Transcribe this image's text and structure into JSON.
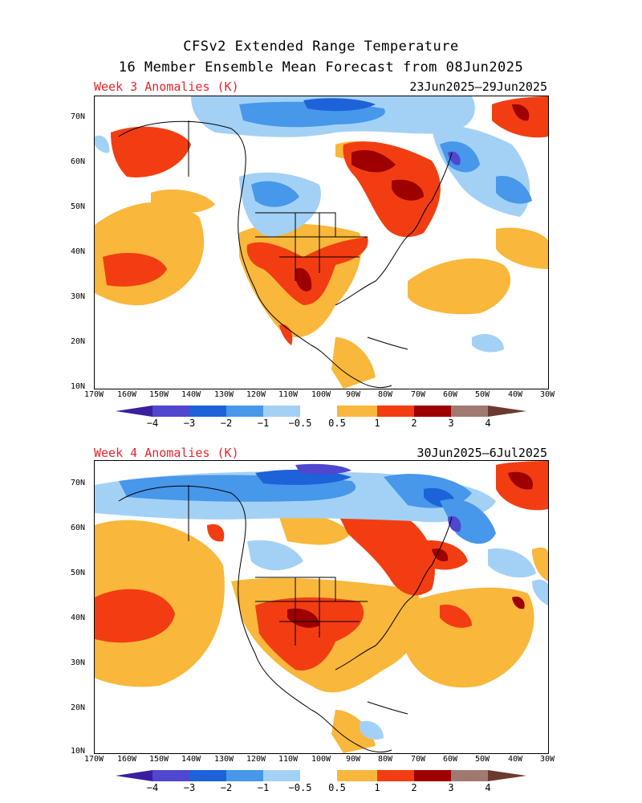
{
  "title_line1": "CFSv2 Extended Range Temperature",
  "title_line2": "16 Member Ensemble Mean Forecast from 08Jun2025",
  "panels": [
    {
      "label": "Week 3 Anomalies (K)",
      "date_range": "23Jun2025–29Jun2025"
    },
    {
      "label": "Week 4 Anomalies (K)",
      "date_range": "30Jun2025–6Jul2025"
    }
  ],
  "lat_labels": [
    "70N",
    "60N",
    "50N",
    "40N",
    "30N",
    "20N",
    "10N"
  ],
  "lon_labels": [
    "170W",
    "160W",
    "150W",
    "140W",
    "130W",
    "120W",
    "110W",
    "100W",
    "90W",
    "80W",
    "70W",
    "60W",
    "50W",
    "40W",
    "30W"
  ],
  "colorbar_labels": [
    "−4",
    "−3",
    "−2",
    "−1",
    "−0.5",
    "0.5",
    "1",
    "2",
    "3",
    "4"
  ],
  "colorbar_colors": [
    "#3a1f9e",
    "#4f47d0",
    "#1d62d8",
    "#4797ea",
    "#a3d1f6",
    "#ffffff",
    "#f9b73b",
    "#f23d12",
    "#9e0000",
    "#a07a70",
    "#6b3a2e"
  ]
}
